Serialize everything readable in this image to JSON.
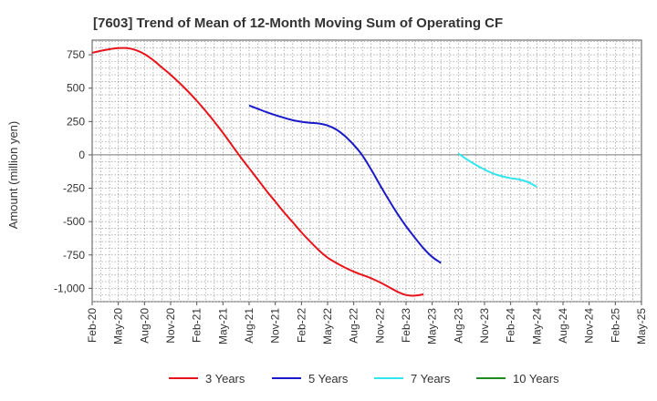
{
  "chart_data": {
    "type": "line",
    "title": "[7603]  Trend of Mean of 12-Month Moving Sum of Operating CF",
    "xlabel": "",
    "ylabel": "Amount (million yen)",
    "ylim": [
      -1100,
      860
    ],
    "yticks": [
      750,
      500,
      250,
      0,
      -250,
      -500,
      -750,
      -1000
    ],
    "ytick_labels": [
      "750",
      "500",
      "250",
      "0",
      "-250",
      "-500",
      "-750",
      "-1,000"
    ],
    "xticks": [
      "Feb-20",
      "May-20",
      "Aug-20",
      "Nov-20",
      "Feb-21",
      "May-21",
      "Aug-21",
      "Nov-21",
      "Feb-22",
      "May-22",
      "Aug-22",
      "Nov-22",
      "Feb-23",
      "May-23",
      "Aug-23",
      "Nov-23",
      "Feb-24",
      "May-24",
      "Aug-24",
      "Nov-24",
      "Feb-25",
      "May-25"
    ],
    "grid": true,
    "legend_position": "bottom",
    "series": [
      {
        "name": "3 Years",
        "color": "#e8141b",
        "start": "Feb-20",
        "values": [
          765,
          780,
          792,
          800,
          800,
          785,
          755,
          710,
          655,
          600,
          540,
          475,
          405,
          330,
          250,
          165,
          75,
          -15,
          -100,
          -185,
          -270,
          -350,
          -430,
          -505,
          -580,
          -650,
          -715,
          -770,
          -810,
          -845,
          -875,
          -900,
          -925,
          -955,
          -990,
          -1025,
          -1050,
          -1055,
          -1045
        ]
      },
      {
        "name": "5 Years",
        "color": "#1a1ac8",
        "start": "Aug-21",
        "values": [
          370,
          345,
          320,
          298,
          278,
          260,
          248,
          240,
          235,
          220,
          190,
          140,
          75,
          -5,
          -110,
          -225,
          -335,
          -440,
          -535,
          -620,
          -700,
          -765,
          -810
        ]
      },
      {
        "name": "7 Years",
        "color": "#33e5ee",
        "start": "Aug-23",
        "values": [
          10,
          -35,
          -75,
          -110,
          -140,
          -160,
          -175,
          -185,
          -205,
          -240
        ]
      },
      {
        "name": "10 Years",
        "color": "#1f8a1f",
        "start": "",
        "values": []
      }
    ]
  }
}
